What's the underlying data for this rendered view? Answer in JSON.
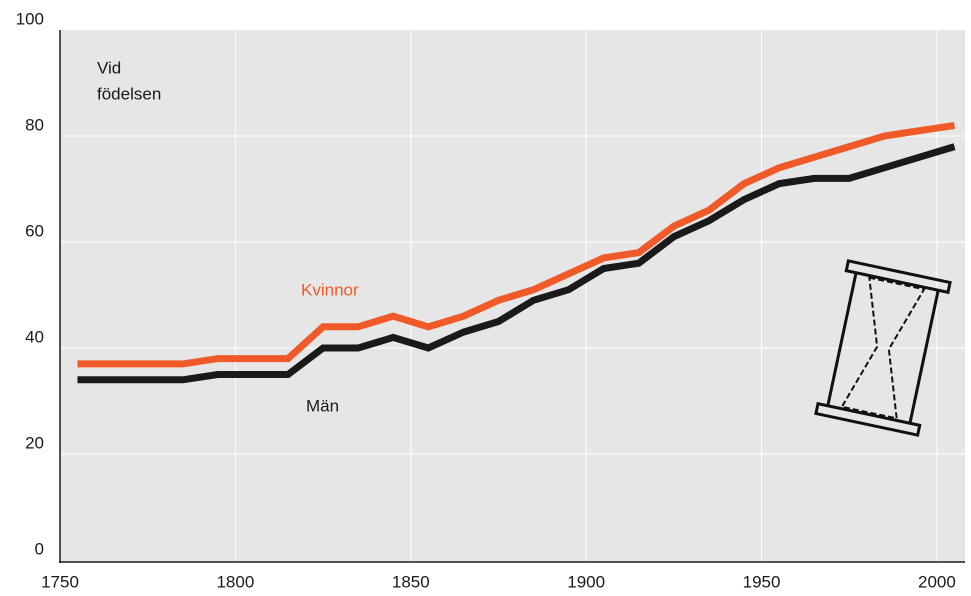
{
  "chart_data": {
    "type": "line",
    "annotation_lines": [
      "Vid",
      "födelsen"
    ],
    "x": [
      1755,
      1765,
      1775,
      1785,
      1795,
      1805,
      1815,
      1825,
      1835,
      1845,
      1855,
      1865,
      1875,
      1885,
      1895,
      1905,
      1915,
      1925,
      1935,
      1945,
      1955,
      1965,
      1975,
      1985,
      1995,
      2005
    ],
    "series": [
      {
        "name": "Kvinnor",
        "color": "#f05a28",
        "values": [
          37,
          37,
          37,
          37,
          38,
          38,
          38,
          44,
          44,
          46,
          44,
          46,
          49,
          51,
          54,
          57,
          58,
          63,
          66,
          71,
          74,
          76,
          78,
          80,
          81,
          82
        ]
      },
      {
        "name": "Män",
        "color": "#1a1a1a",
        "values": [
          34,
          34,
          34,
          34,
          35,
          35,
          35,
          40,
          40,
          42,
          40,
          43,
          45,
          49,
          51,
          55,
          56,
          61,
          64,
          68,
          71,
          72,
          72,
          74,
          76,
          78
        ]
      }
    ],
    "xlim": [
      1750,
      2008
    ],
    "xticks": [
      1750,
      1800,
      1850,
      1900,
      1950,
      2000
    ],
    "ylim": [
      0,
      100
    ],
    "yticks": [
      0,
      20,
      40,
      60,
      80,
      100
    ],
    "grid": true
  }
}
